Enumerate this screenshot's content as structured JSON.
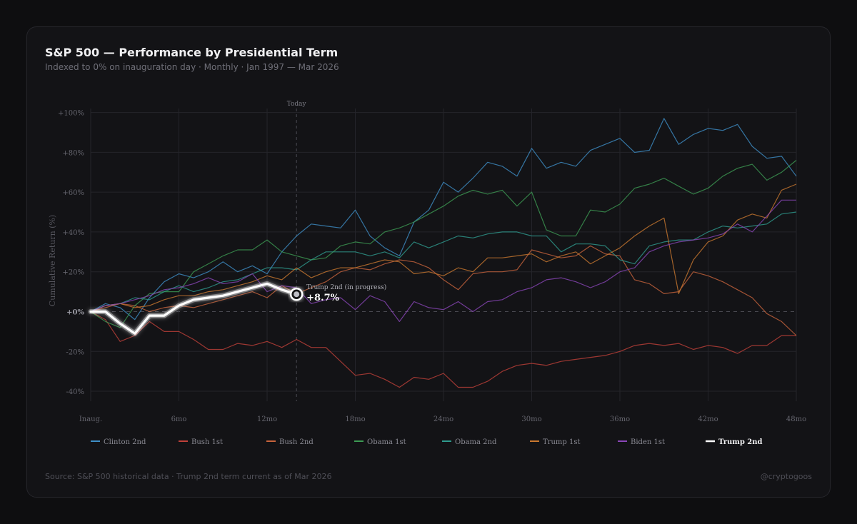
{
  "header": {
    "title": "S&P 500 — Performance by Presidential Term",
    "subtitle": "Indexed to 0% on inauguration day · Monthly · Jan 1997 — Mar 2026"
  },
  "footer": {
    "source": "Source: S&P 500 historical data · Trump 2nd term current as of Mar 2026",
    "handle": "@cryptogoos"
  },
  "chart_data": {
    "type": "line",
    "title": "S&P 500 — Performance by Presidential Term",
    "xlabel": "",
    "ylabel": "Cumulative Return (%)",
    "xlim": [
      0,
      48
    ],
    "ylim": [
      -45,
      102
    ],
    "x_ticks": [
      0,
      6,
      12,
      18,
      24,
      30,
      36,
      42,
      48
    ],
    "x_tick_labels": [
      "Inaug.",
      "6mo",
      "12mo",
      "18mo",
      "24mo",
      "30mo",
      "36mo",
      "42mo",
      "48mo"
    ],
    "y_ticks": [
      100,
      80,
      60,
      40,
      20,
      0,
      -20,
      -40
    ],
    "y_tick_labels": [
      "+100%",
      "+80%",
      "+60%",
      "+40%",
      "+20%",
      "+0%",
      "-20%",
      "-40%"
    ],
    "today_marker": {
      "x": 14,
      "label": "Today"
    },
    "annotation": {
      "series": "Trump 2nd",
      "x": 14,
      "label": "Trump 2nd (in progress)",
      "value_label": "+8.7%"
    },
    "series": [
      {
        "name": "Clinton 2nd",
        "color": "#3f8fc7",
        "highlight": false,
        "values": [
          0,
          4,
          2,
          -4,
          7,
          15,
          19,
          17,
          20,
          25,
          20,
          23,
          19,
          30,
          38,
          44,
          43,
          42,
          51,
          38,
          32,
          28,
          45,
          51,
          65,
          60,
          67,
          75,
          73,
          68,
          82,
          72,
          75,
          73,
          81,
          84,
          87,
          80,
          81,
          97,
          84,
          89,
          92,
          91,
          94,
          83,
          77,
          78,
          68
        ]
      },
      {
        "name": "Bush 1st",
        "color": "#c0413a",
        "highlight": false,
        "values": [
          0,
          -4,
          -15,
          -12,
          -5,
          -10,
          -10,
          -14,
          -19,
          -19,
          -16,
          -17,
          -15,
          -18,
          -14,
          -18,
          -18,
          -25,
          -32,
          -31,
          -34,
          -38,
          -33,
          -34,
          -31,
          -38,
          -38,
          -35,
          -30,
          -27,
          -26,
          -27,
          -25,
          -24,
          -23,
          -22,
          -20,
          -17,
          -16,
          -17,
          -16,
          -19,
          -17,
          -18,
          -21,
          -17,
          -17,
          -12,
          -12
        ]
      },
      {
        "name": "Bush 2nd",
        "color": "#c8643c",
        "highlight": false,
        "values": [
          0,
          2,
          4,
          3,
          0,
          2,
          3,
          2,
          4,
          6,
          8,
          10,
          7,
          13,
          9,
          12,
          15,
          20,
          22,
          21,
          24,
          26,
          25,
          22,
          16,
          11,
          19,
          20,
          20,
          21,
          31,
          29,
          27,
          28,
          33,
          29,
          28,
          16,
          14,
          9,
          10,
          20,
          18,
          15,
          11,
          7,
          -1,
          -5,
          -12
        ]
      },
      {
        "name": "Obama 1st",
        "color": "#3d9b54",
        "highlight": false,
        "values": [
          0,
          -5,
          -8,
          3,
          9,
          10,
          10,
          20,
          24,
          28,
          31,
          31,
          36,
          30,
          28,
          26,
          27,
          33,
          35,
          34,
          40,
          42,
          45,
          49,
          53,
          58,
          61,
          59,
          61,
          53,
          60,
          41,
          38,
          38,
          51,
          50,
          54,
          62,
          64,
          67,
          63,
          59,
          62,
          68,
          72,
          74,
          66,
          70,
          76
        ]
      },
      {
        "name": "Obama 2nd",
        "color": "#2f9b8e",
        "highlight": false,
        "values": [
          0,
          3,
          4,
          7,
          6,
          10,
          13,
          10,
          12,
          15,
          16,
          19,
          22,
          22,
          21,
          26,
          30,
          30,
          30,
          28,
          30,
          27,
          35,
          32,
          35,
          38,
          37,
          39,
          40,
          40,
          38,
          38,
          30,
          34,
          34,
          33,
          26,
          24,
          33,
          35,
          36,
          36,
          40,
          43,
          42,
          43,
          44,
          49,
          50
        ]
      },
      {
        "name": "Trump 1st",
        "color": "#c9782f",
        "highlight": false,
        "values": [
          0,
          3,
          4,
          2,
          3,
          6,
          8,
          8,
          10,
          11,
          13,
          15,
          18,
          16,
          22,
          17,
          20,
          22,
          22,
          24,
          26,
          25,
          19,
          20,
          18,
          22,
          20,
          27,
          27,
          28,
          29,
          25,
          28,
          30,
          24,
          28,
          32,
          38,
          43,
          47,
          9,
          26,
          35,
          38,
          46,
          49,
          47,
          61,
          64
        ]
      },
      {
        "name": "Biden 1st",
        "color": "#8a46b8",
        "highlight": false,
        "values": [
          0,
          3,
          4,
          6,
          8,
          11,
          12,
          14,
          17,
          14,
          15,
          19,
          10,
          13,
          12,
          4,
          6,
          7,
          1,
          8,
          5,
          -5,
          5,
          2,
          1,
          5,
          0,
          5,
          6,
          10,
          12,
          16,
          17,
          15,
          12,
          15,
          20,
          22,
          30,
          33,
          35,
          36,
          37,
          39,
          44,
          40,
          48,
          56,
          56
        ]
      },
      {
        "name": "Trump 2nd",
        "color": "#ffffff",
        "highlight": true,
        "values": [
          0,
          0,
          -6,
          -11,
          -2,
          -2,
          3,
          6,
          7,
          8,
          10,
          12,
          14,
          11,
          8.7
        ]
      }
    ]
  }
}
